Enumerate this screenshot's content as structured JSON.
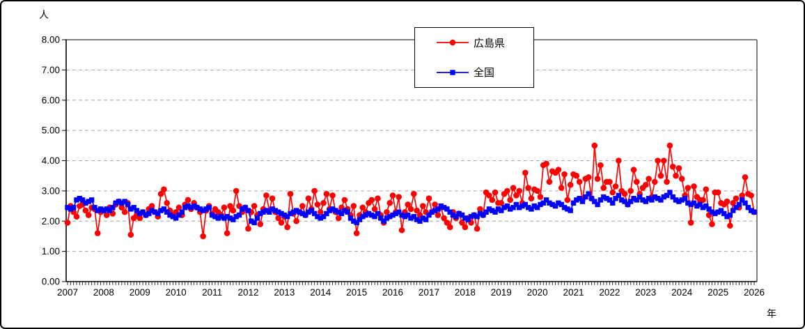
{
  "y_axis": {
    "unit_label": "人",
    "tick_labels": [
      "0.00",
      "1.00",
      "2.00",
      "3.00",
      "4.00",
      "5.00",
      "6.00",
      "7.00",
      "8.00"
    ],
    "min": 0,
    "max": 8
  },
  "x_axis": {
    "unit_label": "年",
    "years": [
      "2007",
      "2008",
      "2009",
      "2010",
      "2011",
      "2012",
      "2013",
      "2014",
      "2015",
      "2016",
      "2017",
      "2018",
      "2019",
      "2020",
      "2021",
      "2022",
      "2023",
      "2024",
      "2025",
      "2026"
    ]
  },
  "legend": {
    "items": [
      {
        "label": "広島県",
        "color": "#ff0000",
        "marker": "circle"
      },
      {
        "label": "全国",
        "color": "#0000ff",
        "marker": "square"
      }
    ]
  },
  "chart_data": {
    "type": "line",
    "title": "",
    "xlabel": "年",
    "ylabel": "人",
    "ylim": [
      0,
      8
    ],
    "grid": "horizontal-dashed",
    "legend_position": "top-center",
    "x_start": "2007-01",
    "x_end": "2026-01",
    "x_interval": "monthly",
    "series": [
      {
        "id": "hiroshima",
        "name": "広島県",
        "color": "#ff0000",
        "marker": "circle",
        "values": [
          1.95,
          2.5,
          2.3,
          2.15,
          2.5,
          2.55,
          2.35,
          2.2,
          2.45,
          2.4,
          1.6,
          2.3,
          2.35,
          2.2,
          2.45,
          2.25,
          2.55,
          2.65,
          2.45,
          2.3,
          2.6,
          1.55,
          2.1,
          2.2,
          2.1,
          2.3,
          2.2,
          2.4,
          2.5,
          2.3,
          2.15,
          2.9,
          3.05,
          2.6,
          2.35,
          2.2,
          2.3,
          2.45,
          2.2,
          2.55,
          2.7,
          2.4,
          2.6,
          2.45,
          2.3,
          1.5,
          2.35,
          2.5,
          2.25,
          2.4,
          2.3,
          2.2,
          2.45,
          1.6,
          2.5,
          2.35,
          3.0,
          2.5,
          2.3,
          2.45,
          1.75,
          2.3,
          2.5,
          2.2,
          1.9,
          2.4,
          2.85,
          2.35,
          2.75,
          2.3,
          2.1,
          1.95,
          2.15,
          1.8,
          2.9,
          2.25,
          2.0,
          2.3,
          2.5,
          2.2,
          2.75,
          2.4,
          3.0,
          2.55,
          2.3,
          2.6,
          2.9,
          2.4,
          2.85,
          2.3,
          2.1,
          2.45,
          2.7,
          2.4,
          2.2,
          2.5,
          1.6,
          2.2,
          2.45,
          2.3,
          2.6,
          2.7,
          2.4,
          2.75,
          2.2,
          1.95,
          2.3,
          2.6,
          2.85,
          2.3,
          2.8,
          1.7,
          2.3,
          2.55,
          2.4,
          2.9,
          2.35,
          2.2,
          2.5,
          2.3,
          2.75,
          2.3,
          2.55,
          2.2,
          2.45,
          2.1,
          1.95,
          1.8,
          2.3,
          2.1,
          2.25,
          1.95,
          1.8,
          2.1,
          1.95,
          2.2,
          1.75,
          2.4,
          2.2,
          2.95,
          2.85,
          2.7,
          2.95,
          2.6,
          2.6,
          2.9,
          3.0,
          2.7,
          3.1,
          2.85,
          3.0,
          2.6,
          3.6,
          3.1,
          2.75,
          3.05,
          3.0,
          2.8,
          3.85,
          3.9,
          3.3,
          3.65,
          3.6,
          3.7,
          3.1,
          3.55,
          2.7,
          3.2,
          3.55,
          3.5,
          3.3,
          2.7,
          3.4,
          3.45,
          2.75,
          4.5,
          3.4,
          3.85,
          3.1,
          3.3,
          3.3,
          2.95,
          3.15,
          4.0,
          3.0,
          2.9,
          2.55,
          3.0,
          3.7,
          3.3,
          2.9,
          3.1,
          3.2,
          3.4,
          2.8,
          3.3,
          4.0,
          3.5,
          4.0,
          3.3,
          4.5,
          3.8,
          3.5,
          3.75,
          3.4,
          2.85,
          3.1,
          1.95,
          3.15,
          2.8,
          2.7,
          2.7,
          3.05,
          2.2,
          1.9,
          2.95,
          2.95,
          2.6,
          2.55,
          2.65,
          1.85,
          2.6,
          2.75,
          2.45,
          2.85,
          3.45,
          2.9,
          2.85,
          2.3
        ]
      },
      {
        "id": "zenkoku",
        "name": "全国",
        "color": "#0000ff",
        "marker": "square",
        "values": [
          2.45,
          2.4,
          2.45,
          2.7,
          2.75,
          2.7,
          2.6,
          2.65,
          2.7,
          2.45,
          2.35,
          2.4,
          2.35,
          2.4,
          2.35,
          2.45,
          2.6,
          2.65,
          2.6,
          2.65,
          2.55,
          2.4,
          2.45,
          2.35,
          2.25,
          2.3,
          2.2,
          2.25,
          2.35,
          2.3,
          2.25,
          2.35,
          2.4,
          2.3,
          2.2,
          2.15,
          2.1,
          2.2,
          2.3,
          2.45,
          2.5,
          2.45,
          2.5,
          2.45,
          2.4,
          2.35,
          2.4,
          2.45,
          2.2,
          2.15,
          2.1,
          2.15,
          2.1,
          2.15,
          2.1,
          2.05,
          2.15,
          2.2,
          2.4,
          2.45,
          2.35,
          2.0,
          1.95,
          2.1,
          2.25,
          2.3,
          2.35,
          2.3,
          2.4,
          2.35,
          2.3,
          2.25,
          2.2,
          2.15,
          2.25,
          2.3,
          2.35,
          2.3,
          2.25,
          2.2,
          2.3,
          2.35,
          2.25,
          2.15,
          2.1,
          2.15,
          2.25,
          2.35,
          2.4,
          2.35,
          2.3,
          2.25,
          2.35,
          2.3,
          2.1,
          2.0,
          1.95,
          2.05,
          2.15,
          2.2,
          2.25,
          2.2,
          2.15,
          2.25,
          2.1,
          2.0,
          2.1,
          2.15,
          2.2,
          2.25,
          2.3,
          2.2,
          2.15,
          2.2,
          2.1,
          2.15,
          2.05,
          2.0,
          2.1,
          2.05,
          2.2,
          2.3,
          2.35,
          2.4,
          2.5,
          2.45,
          2.4,
          2.3,
          2.2,
          2.15,
          2.25,
          2.2,
          2.1,
          2.05,
          2.15,
          2.2,
          2.15,
          2.25,
          2.2,
          2.3,
          2.4,
          2.35,
          2.3,
          2.4,
          2.35,
          2.45,
          2.5,
          2.4,
          2.45,
          2.55,
          2.45,
          2.5,
          2.55,
          2.45,
          2.4,
          2.5,
          2.45,
          2.55,
          2.6,
          2.7,
          2.6,
          2.55,
          2.5,
          2.6,
          2.55,
          2.45,
          2.4,
          2.35,
          2.6,
          2.7,
          2.75,
          2.65,
          2.8,
          2.9,
          2.75,
          2.65,
          2.55,
          2.7,
          2.8,
          2.75,
          2.7,
          2.6,
          2.75,
          2.85,
          2.7,
          2.65,
          2.55,
          2.65,
          2.75,
          2.7,
          2.8,
          2.7,
          2.65,
          2.75,
          2.7,
          2.8,
          2.75,
          2.7,
          2.8,
          2.85,
          2.95,
          2.8,
          2.7,
          2.65,
          2.7,
          2.75,
          2.6,
          2.55,
          2.6,
          2.5,
          2.55,
          2.45,
          2.5,
          2.4,
          2.3,
          2.25,
          2.3,
          2.35,
          2.25,
          2.15,
          2.2,
          2.35,
          2.45,
          2.55,
          2.7,
          2.6,
          2.45,
          2.35,
          2.3
        ]
      }
    ],
    "style": {
      "gridline_color": "#a6a6a6",
      "plot_border_color": "#808080",
      "axis_color": "#000000"
    }
  }
}
